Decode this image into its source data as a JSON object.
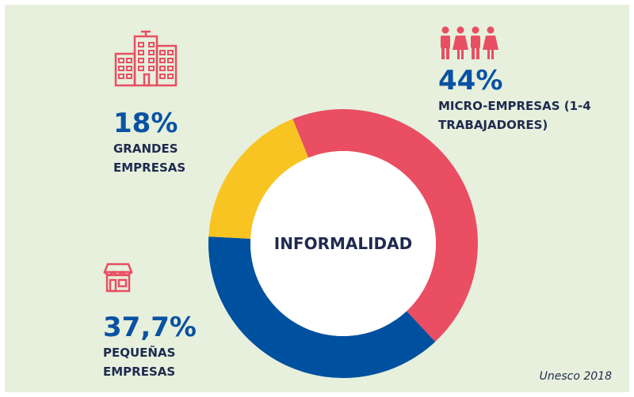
{
  "chart_data": {
    "type": "donut",
    "center_label": "INFORMALIDAD",
    "source": "Unesco 2018",
    "categories": [
      "MICRO-EMPRESAS (1-4 TRABAJADORES)",
      "PEQUEÑAS EMPRESAS",
      "GRANDES EMPRESAS"
    ],
    "values": [
      44,
      37.7,
      18
    ],
    "value_labels": [
      "44%",
      "37,7%",
      "18%"
    ],
    "colors": [
      "#e94e62",
      "#0050a0",
      "#f8c421"
    ]
  }
}
